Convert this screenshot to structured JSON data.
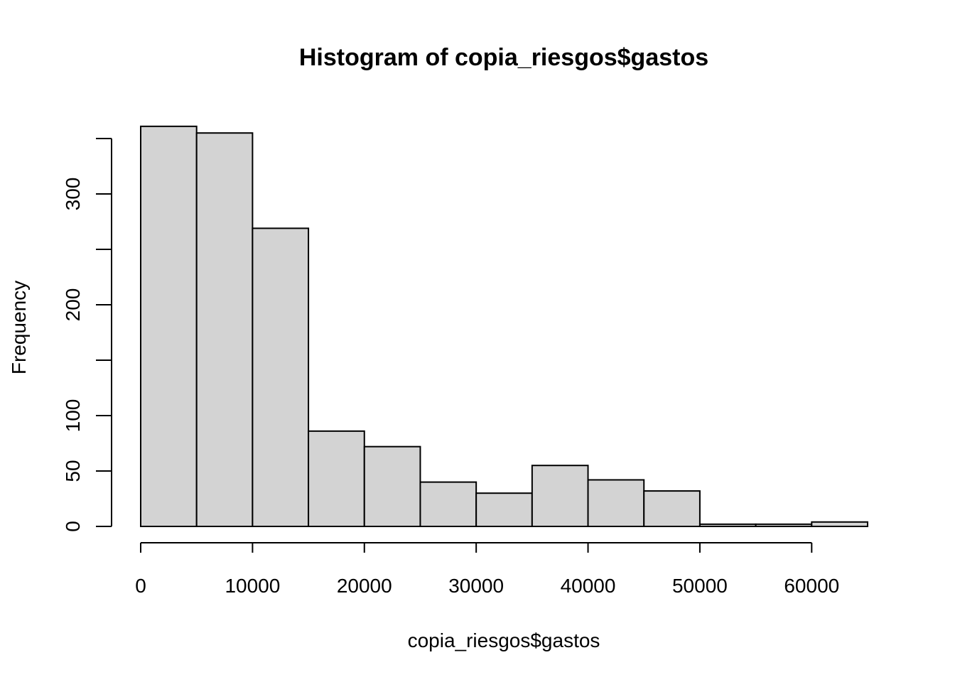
{
  "chart_data": {
    "type": "bar",
    "title": "Histogram of copia_riesgos$gastos",
    "xlabel": "copia_riesgos$gastos",
    "ylabel": "Frequency",
    "bin_edges": [
      0,
      5000,
      10000,
      15000,
      20000,
      25000,
      30000,
      35000,
      40000,
      45000,
      50000,
      55000,
      60000,
      65000
    ],
    "values": [
      361,
      355,
      269,
      86,
      72,
      40,
      30,
      55,
      42,
      32,
      2,
      2,
      4
    ],
    "xlim": [
      0,
      65000
    ],
    "ylim": [
      0,
      350
    ],
    "x_ticks": [
      0,
      10000,
      20000,
      30000,
      40000,
      50000,
      60000
    ],
    "y_ticks": [
      0,
      50,
      100,
      150,
      200,
      250,
      300,
      350
    ],
    "y_tick_labels": [
      "0",
      "50",
      "100",
      "",
      "200",
      "",
      "300",
      ""
    ],
    "grid": false,
    "legend": "none",
    "colors": {
      "bar_fill": "#d3d3d3",
      "bar_stroke": "#000000"
    }
  }
}
